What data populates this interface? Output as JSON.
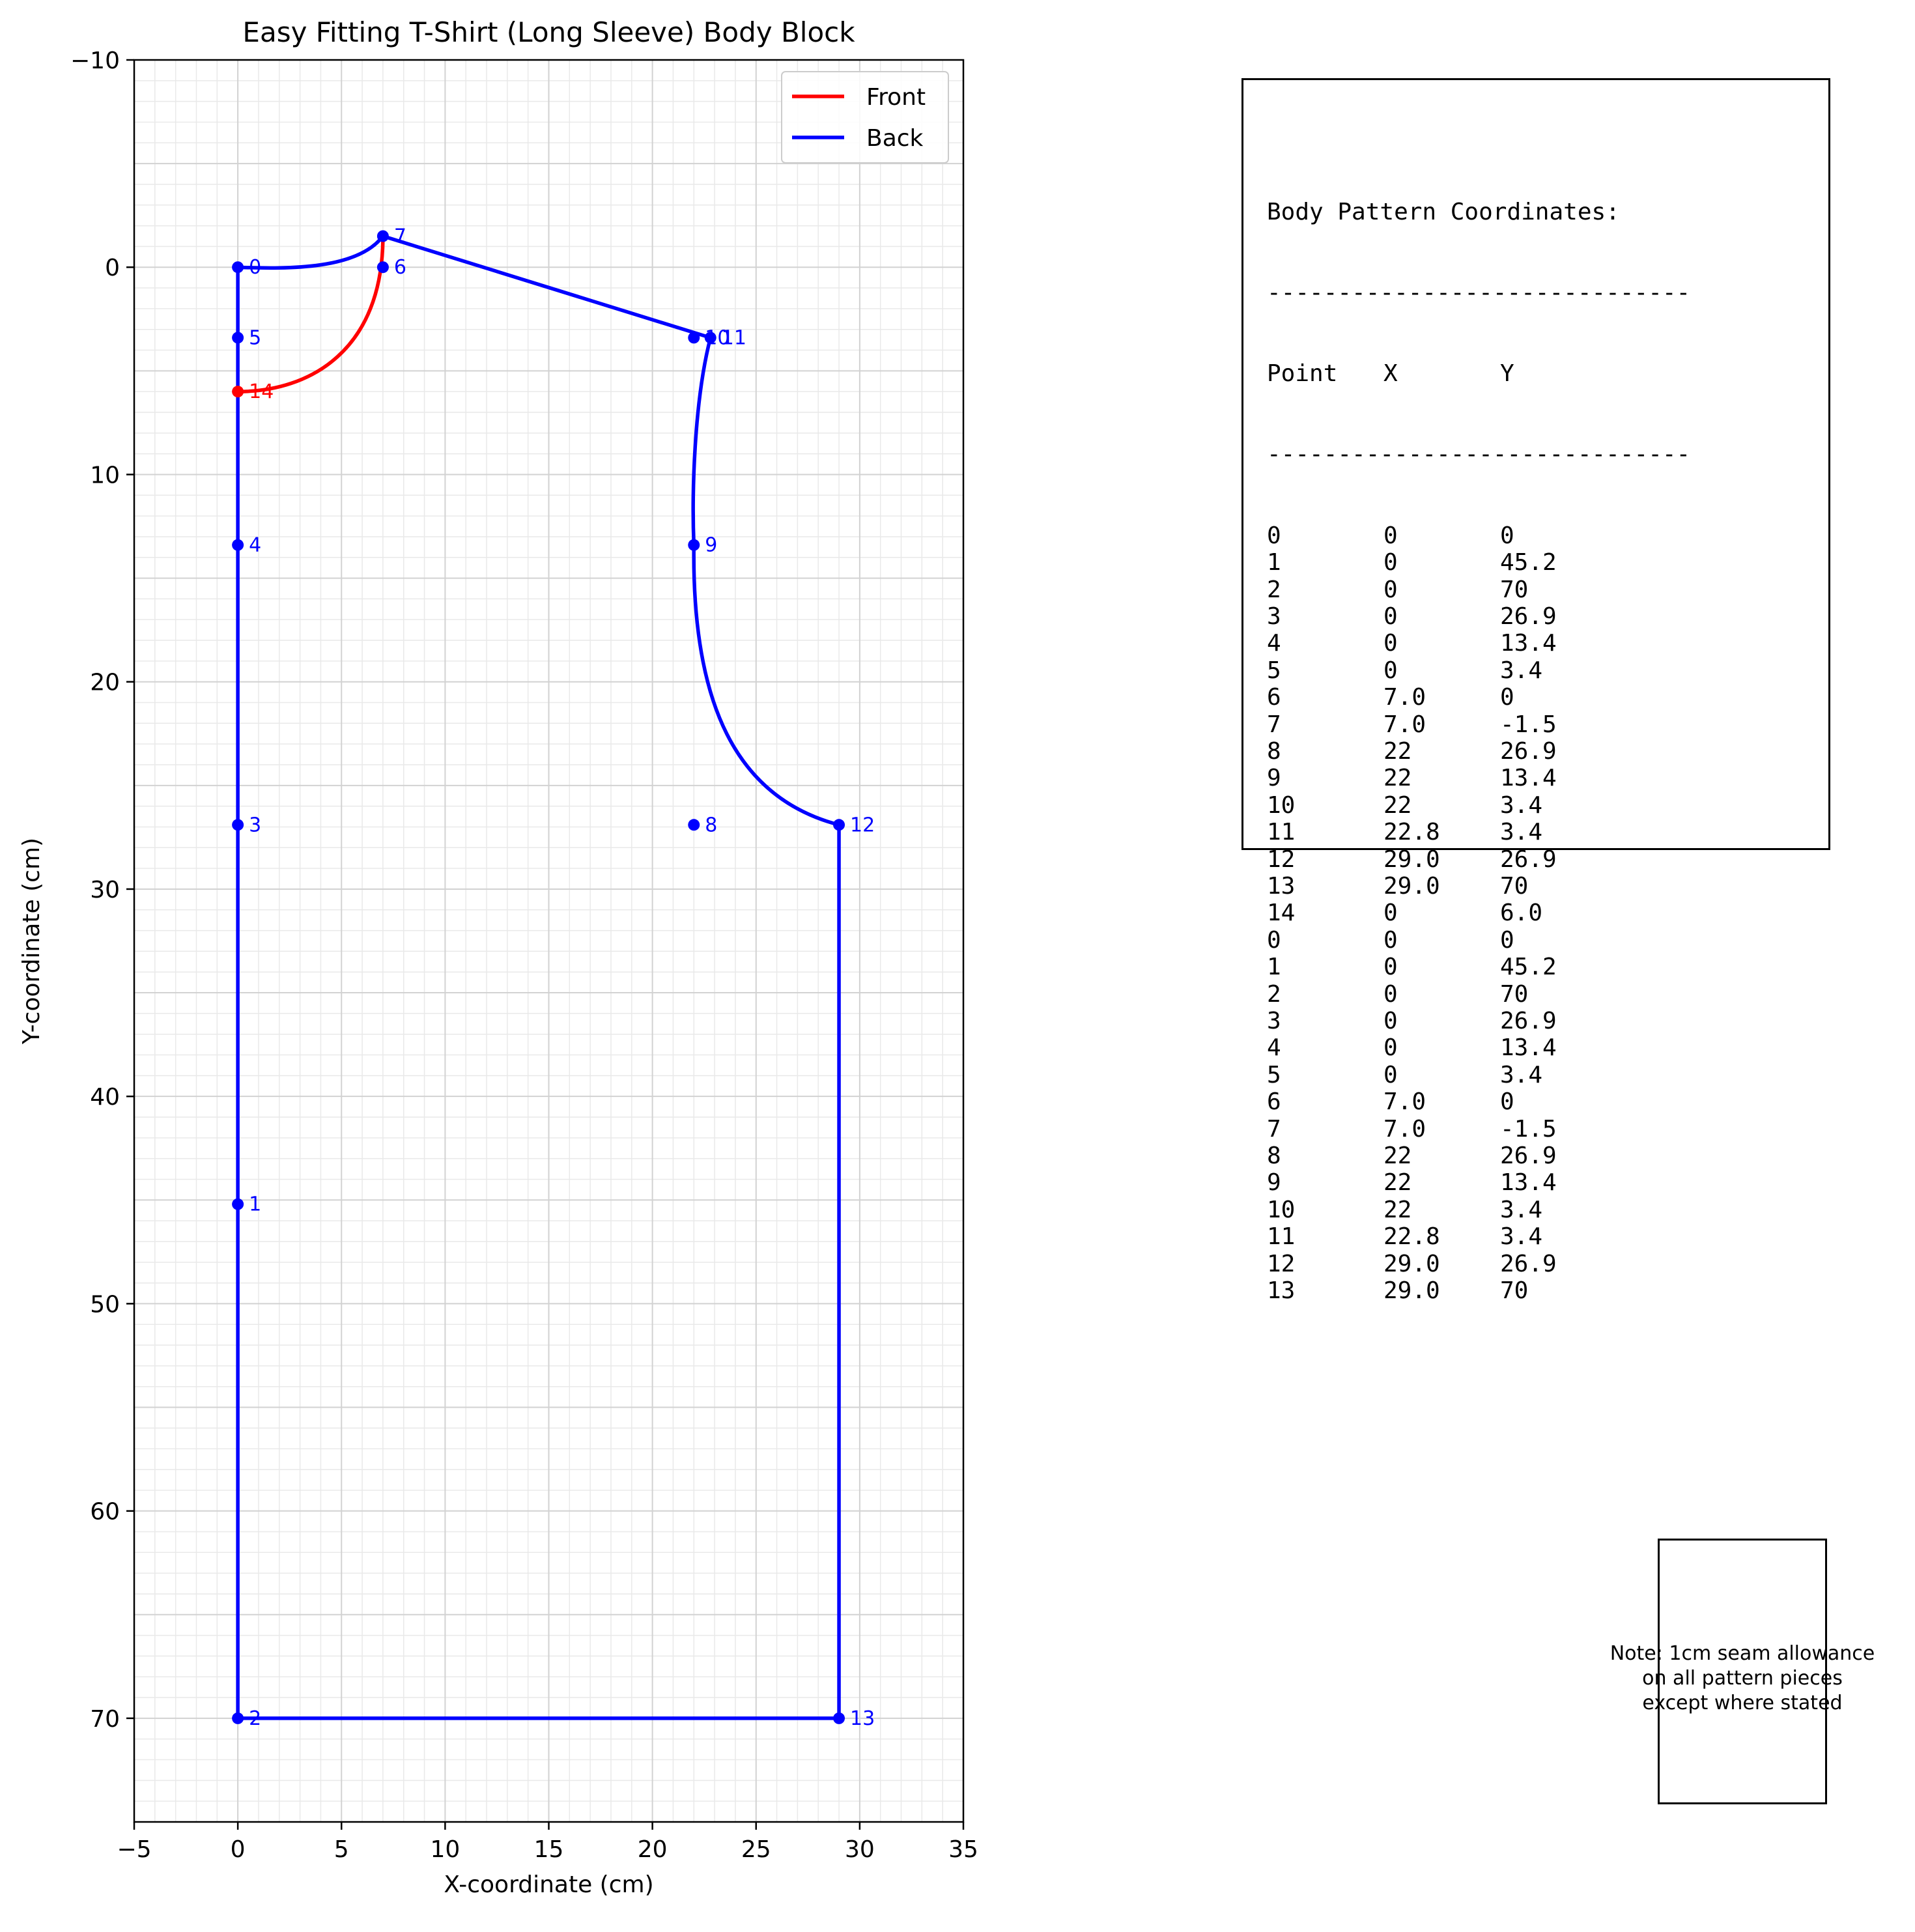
{
  "chart_data": {
    "type": "line",
    "title": "Easy Fitting T-Shirt (Long Sleeve) Body Block",
    "xlabel": "X-coordinate (cm)",
    "ylabel": "Y-coordinate (cm)",
    "xlim": [
      -5,
      35
    ],
    "ylim": [
      75,
      -10
    ],
    "y_inverted": true,
    "xticks": [
      -5,
      0,
      5,
      10,
      15,
      20,
      25,
      30,
      35
    ],
    "xtick_labels": [
      "−5",
      "0",
      "5",
      "10",
      "15",
      "20",
      "25",
      "30",
      "35"
    ],
    "yticks": [
      -10,
      0,
      10,
      20,
      30,
      40,
      50,
      60,
      70
    ],
    "ytick_labels": [
      "−10",
      "0",
      "10",
      "20",
      "30",
      "40",
      "50",
      "60",
      "70"
    ],
    "grid": true,
    "legend_position": "top-right",
    "series": [
      {
        "name": "Front",
        "color": "#ff0000",
        "points": [
          [
            0,
            6.0
          ],
          [
            7.0,
            -1.5
          ]
        ],
        "curve": "neckline"
      },
      {
        "name": "Back",
        "color": "#0000ff",
        "points": [
          [
            0,
            0
          ],
          [
            7.0,
            -1.5
          ],
          [
            22.8,
            3.4
          ],
          [
            29.0,
            26.9
          ],
          [
            29.0,
            70
          ],
          [
            0,
            70
          ],
          [
            0,
            0
          ]
        ]
      }
    ],
    "point_labels": [
      {
        "label": "0",
        "x": 0,
        "y": 0,
        "color": "#0000ff"
      },
      {
        "label": "1",
        "x": 0,
        "y": 45.2,
        "color": "#0000ff"
      },
      {
        "label": "2",
        "x": 0,
        "y": 70,
        "color": "#0000ff"
      },
      {
        "label": "3",
        "x": 0,
        "y": 26.9,
        "color": "#0000ff"
      },
      {
        "label": "4",
        "x": 0,
        "y": 13.4,
        "color": "#0000ff"
      },
      {
        "label": "5",
        "x": 0,
        "y": 3.4,
        "color": "#0000ff"
      },
      {
        "label": "6",
        "x": 7.0,
        "y": 0,
        "color": "#0000ff"
      },
      {
        "label": "7",
        "x": 7.0,
        "y": -1.5,
        "color": "#0000ff"
      },
      {
        "label": "8",
        "x": 22,
        "y": 26.9,
        "color": "#0000ff"
      },
      {
        "label": "9",
        "x": 22,
        "y": 13.4,
        "color": "#0000ff"
      },
      {
        "label": "10",
        "x": 22,
        "y": 3.4,
        "color": "#0000ff"
      },
      {
        "label": "11",
        "x": 22.8,
        "y": 3.4,
        "color": "#0000ff"
      },
      {
        "label": "12",
        "x": 29.0,
        "y": 26.9,
        "color": "#0000ff"
      },
      {
        "label": "13",
        "x": 29.0,
        "y": 70,
        "color": "#0000ff"
      },
      {
        "label": "14",
        "x": 0,
        "y": 6.0,
        "color": "#ff0000"
      }
    ]
  },
  "coordinates_panel": {
    "title": "Body Pattern Coordinates:",
    "separator": "------------------------------",
    "headers": [
      "Point",
      "X",
      "Y"
    ],
    "rows": [
      [
        "0",
        "0",
        "0"
      ],
      [
        "1",
        "0",
        "45.2"
      ],
      [
        "2",
        "0",
        "70"
      ],
      [
        "3",
        "0",
        "26.9"
      ],
      [
        "4",
        "0",
        "13.4"
      ],
      [
        "5",
        "0",
        "3.4"
      ],
      [
        "6",
        "7.0",
        "0"
      ],
      [
        "7",
        "7.0",
        "-1.5"
      ],
      [
        "8",
        "22",
        "26.9"
      ],
      [
        "9",
        "22",
        "13.4"
      ],
      [
        "10",
        "22",
        "3.4"
      ],
      [
        "11",
        "22.8",
        "3.4"
      ],
      [
        "12",
        "29.0",
        "26.9"
      ],
      [
        "13",
        "29.0",
        "70"
      ],
      [
        "14",
        "0",
        "6.0"
      ],
      [
        "0",
        "0",
        "0"
      ],
      [
        "1",
        "0",
        "45.2"
      ],
      [
        "2",
        "0",
        "70"
      ],
      [
        "3",
        "0",
        "26.9"
      ],
      [
        "4",
        "0",
        "13.4"
      ],
      [
        "5",
        "0",
        "3.4"
      ],
      [
        "6",
        "7.0",
        "0"
      ],
      [
        "7",
        "7.0",
        "-1.5"
      ],
      [
        "8",
        "22",
        "26.9"
      ],
      [
        "9",
        "22",
        "13.4"
      ],
      [
        "10",
        "22",
        "3.4"
      ],
      [
        "11",
        "22.8",
        "3.4"
      ],
      [
        "12",
        "29.0",
        "26.9"
      ],
      [
        "13",
        "29.0",
        "70"
      ]
    ]
  },
  "note": "Note: 1cm seam allowance\non all pattern pieces\nexcept where stated"
}
